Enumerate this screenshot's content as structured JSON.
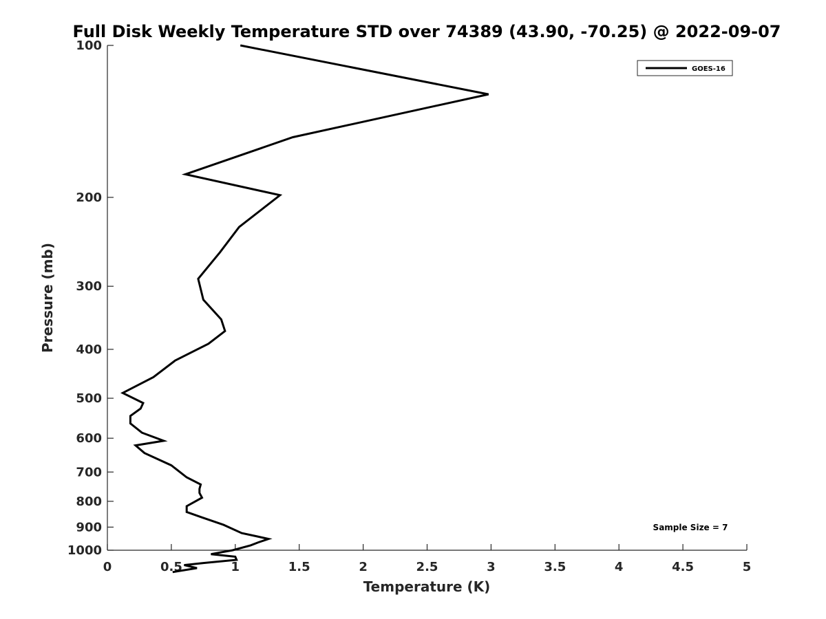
{
  "chart_data": {
    "type": "line",
    "title": "Full Disk Weekly Temperature STD over 74389 (43.90, -70.25) @ 2022-09-07",
    "xlabel": "Temperature (K)",
    "ylabel": "Pressure (mb)",
    "xlim": [
      0,
      5
    ],
    "ylim": [
      100,
      1000
    ],
    "y_scale": "log",
    "y_reversed": true,
    "x_ticks": [
      0,
      0.5,
      1,
      1.5,
      2,
      2.5,
      3,
      3.5,
      4,
      4.5,
      5
    ],
    "x_tick_labels": [
      "0",
      "0.5",
      "1",
      "1.5",
      "2",
      "2.5",
      "3",
      "3.5",
      "4",
      "4.5",
      "5"
    ],
    "y_ticks": [
      100,
      200,
      300,
      400,
      500,
      600,
      700,
      800,
      900,
      1000
    ],
    "y_tick_labels": [
      "100",
      "200",
      "300",
      "400",
      "500",
      "600",
      "700",
      "800",
      "900",
      "1000"
    ],
    "grid": false,
    "legend_position": "top-right",
    "series": [
      {
        "name": "GOES-16",
        "color": "#000000",
        "points": [
          [
            1.04,
            100
          ],
          [
            2.98,
            125
          ],
          [
            1.45,
            152
          ],
          [
            0.61,
            180
          ],
          [
            1.35,
            198
          ],
          [
            1.03,
            229
          ],
          [
            0.88,
            257
          ],
          [
            0.71,
            290
          ],
          [
            0.75,
            319
          ],
          [
            0.89,
            349
          ],
          [
            0.92,
            368
          ],
          [
            0.79,
            390
          ],
          [
            0.53,
            421
          ],
          [
            0.36,
            454
          ],
          [
            0.12,
            488
          ],
          [
            0.28,
            511
          ],
          [
            0.26,
            524
          ],
          [
            0.18,
            542
          ],
          [
            0.18,
            561
          ],
          [
            0.27,
            585
          ],
          [
            0.44,
            607
          ],
          [
            0.22,
            620
          ],
          [
            0.29,
            642
          ],
          [
            0.5,
            679
          ],
          [
            0.62,
            717
          ],
          [
            0.73,
            741
          ],
          [
            0.72,
            756
          ],
          [
            0.72,
            770
          ],
          [
            0.74,
            787
          ],
          [
            0.62,
            818
          ],
          [
            0.62,
            840
          ],
          [
            0.74,
            861
          ],
          [
            0.91,
            891
          ],
          [
            1.05,
            925
          ],
          [
            1.17,
            939
          ],
          [
            1.26,
            950
          ],
          [
            1.18,
            965
          ],
          [
            1.12,
            978
          ],
          [
            0.98,
            1000
          ],
          [
            0.81,
            1018
          ],
          [
            1.0,
            1030
          ],
          [
            1.01,
            1045
          ],
          [
            0.75,
            1060
          ],
          [
            0.6,
            1070
          ],
          [
            0.7,
            1085
          ],
          [
            0.51,
            1105
          ]
        ]
      }
    ],
    "annotations": [
      {
        "text": "Sample Size = 7",
        "position": "bottom-right"
      }
    ]
  }
}
